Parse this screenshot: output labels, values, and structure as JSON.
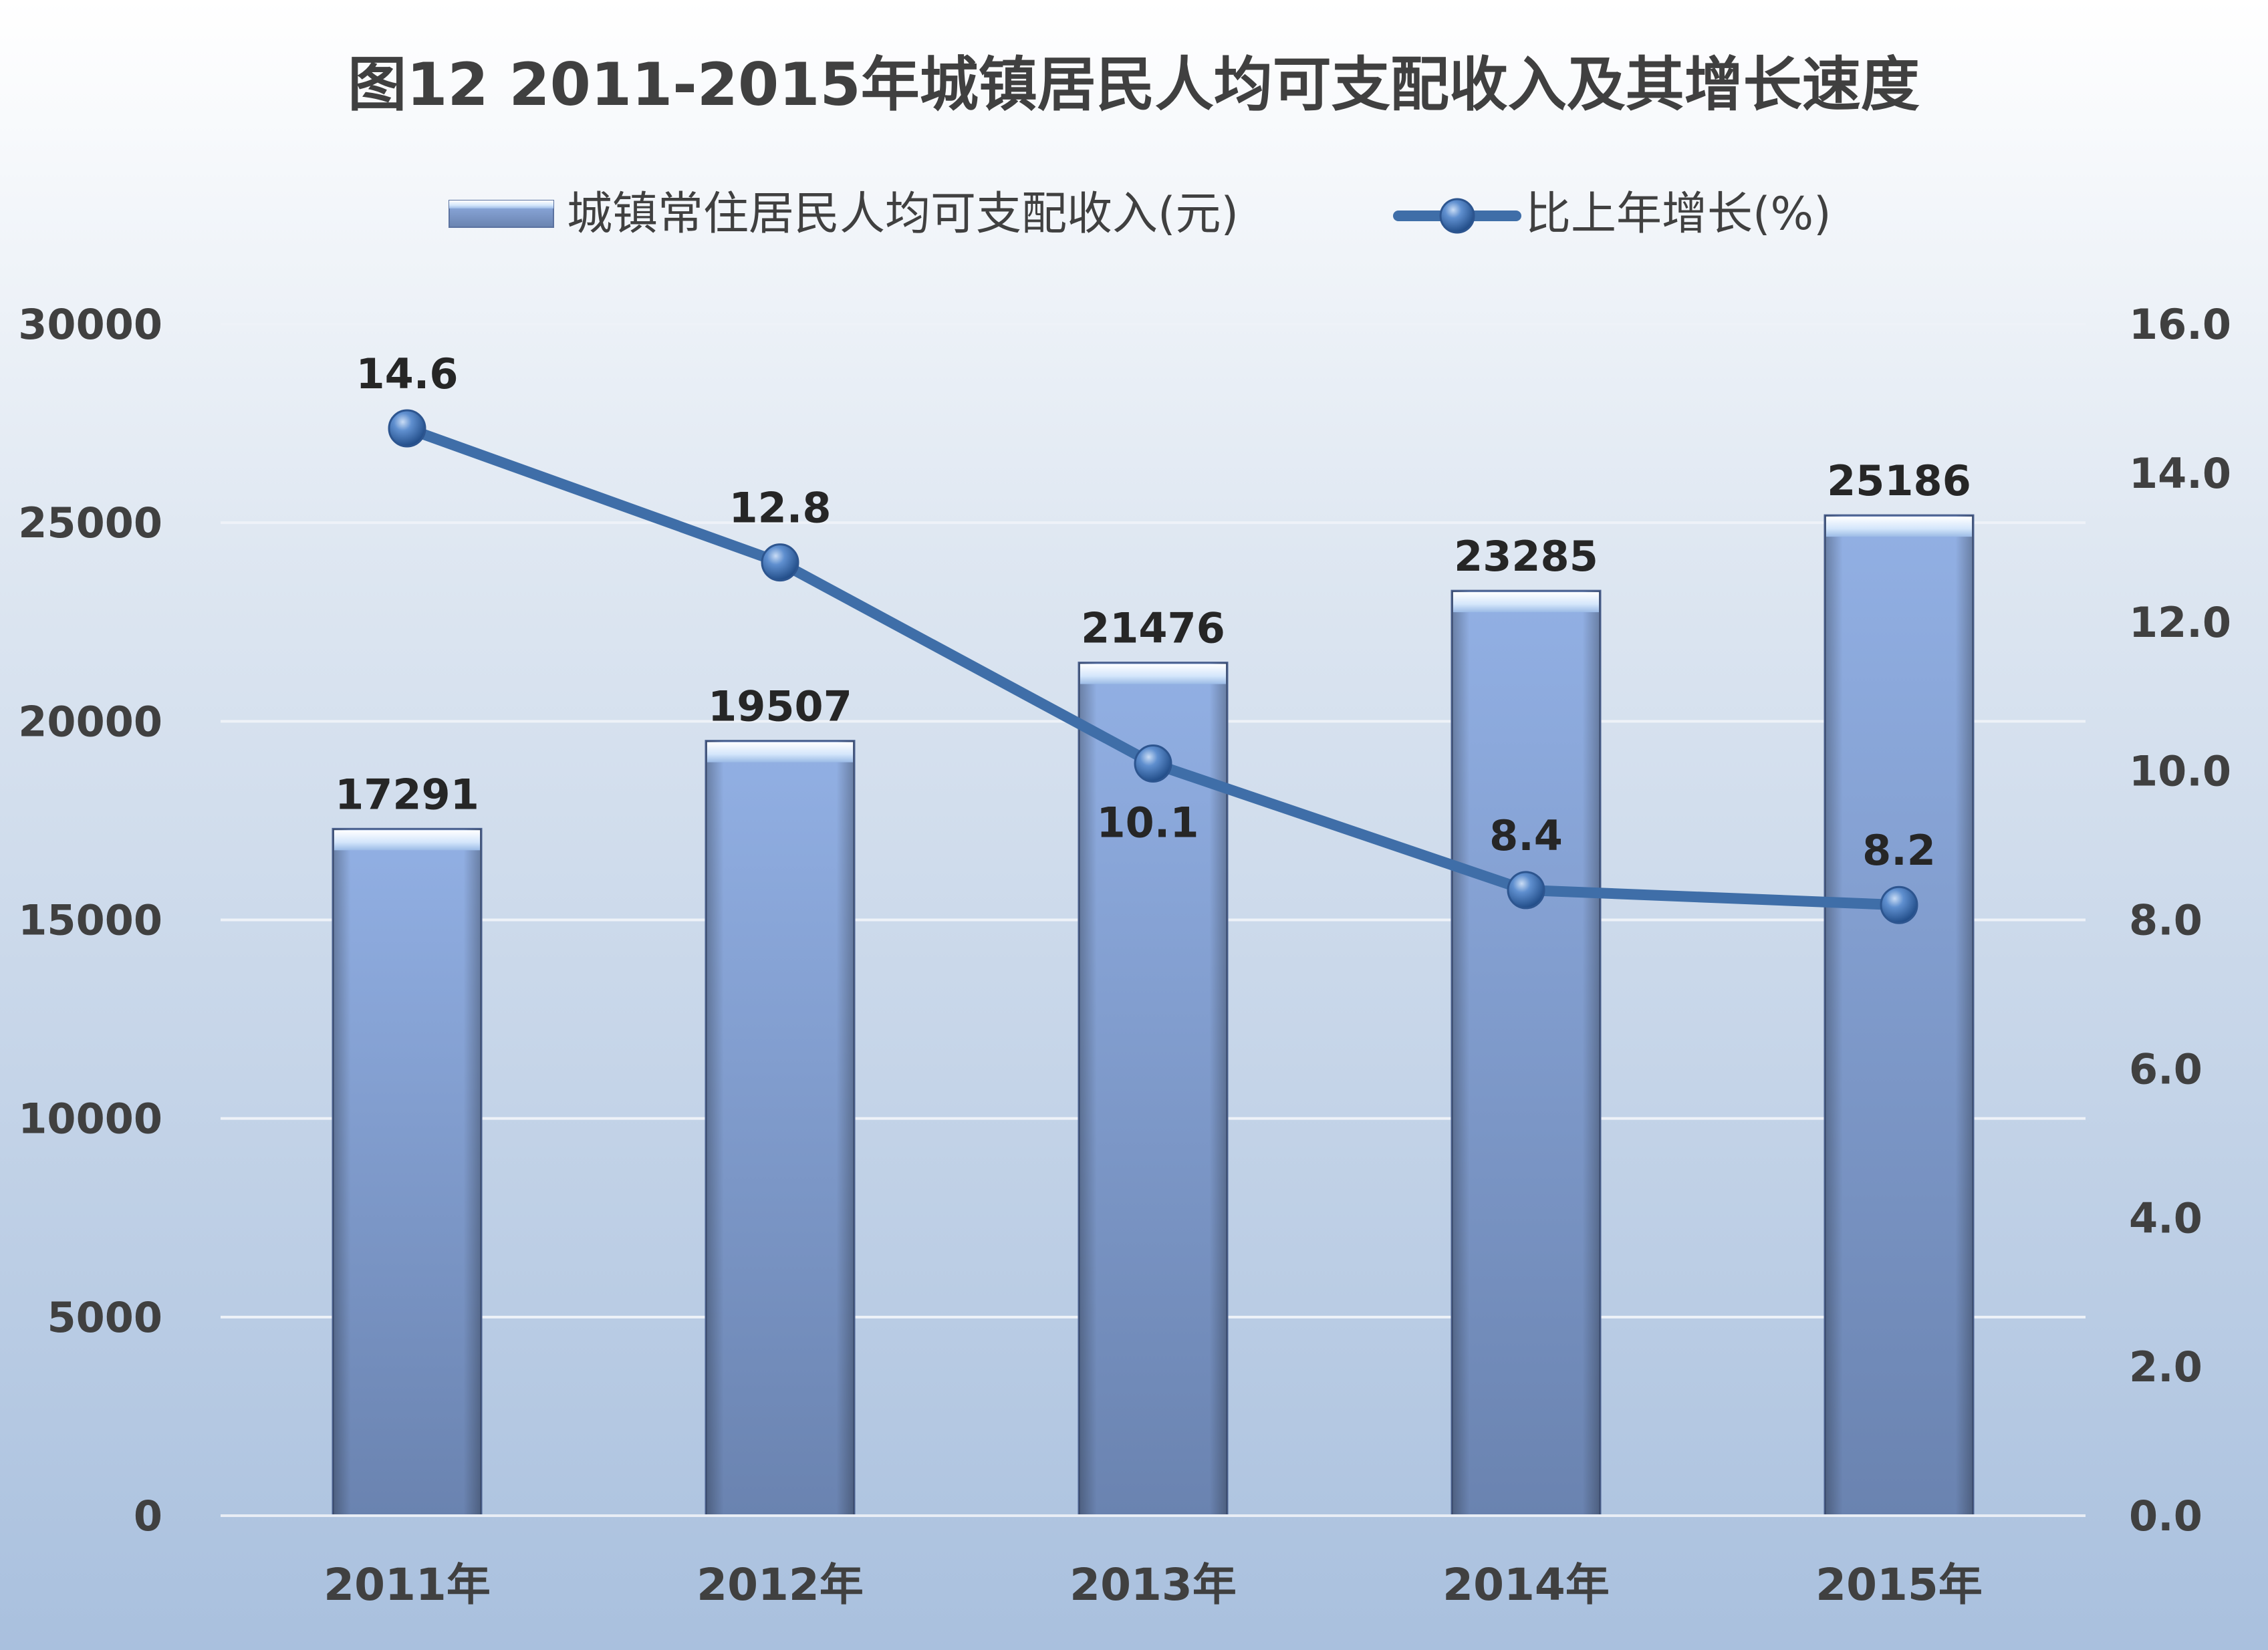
{
  "chart_data": {
    "type": "bar",
    "title": "图12   2011-2015年城镇居民人均可支配收入及其增长速度",
    "categories": [
      "2011年",
      "2012年",
      "2013年",
      "2014年",
      "2015年"
    ],
    "series": [
      {
        "name": "城镇常住居民人均可支配收入(元)",
        "type": "bar",
        "axis": "left",
        "values": [
          17291,
          19507,
          21476,
          23285,
          25186
        ]
      },
      {
        "name": "比上年增长(%)",
        "type": "line",
        "axis": "right",
        "values": [
          14.6,
          12.8,
          10.1,
          8.4,
          8.2
        ],
        "labels": [
          "14.6",
          "12.8",
          "10.1",
          "8.4",
          "8.2"
        ]
      }
    ],
    "y_left": {
      "min": 0,
      "max": 30000,
      "ticks": [
        "0",
        "5000",
        "10000",
        "15000",
        "20000",
        "25000",
        "30000"
      ]
    },
    "y_right": {
      "min": 0,
      "max": 16,
      "ticks": [
        "0.0",
        "2.0",
        "4.0",
        "6.0",
        "8.0",
        "10.0",
        "12.0",
        "14.0",
        "16.0"
      ]
    },
    "grid": true,
    "legend_position": "top",
    "colors": {
      "bar": "#7f9cd0",
      "line": "#3f6ea8",
      "text": "#404040",
      "grid": "#f0f3f8"
    }
  }
}
